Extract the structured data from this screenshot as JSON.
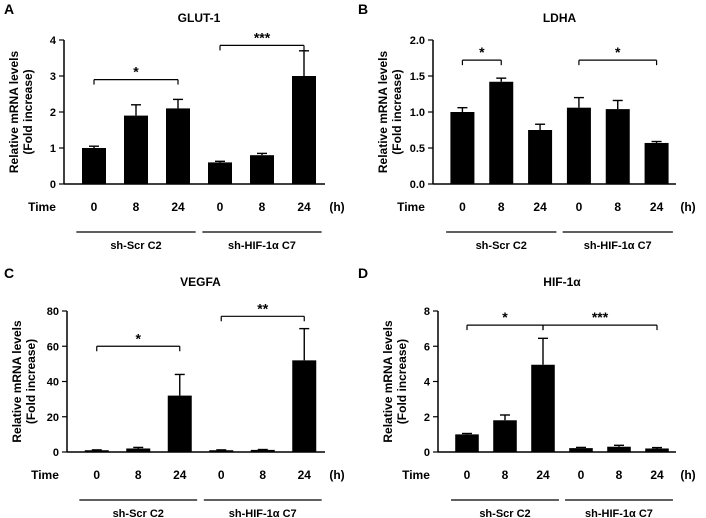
{
  "chart_data": [
    {
      "type": "bar",
      "panel_label": "A",
      "title": "GLUT-1",
      "ylabel_line1": "Relative mRNA levels",
      "ylabel_line2": "(Fold increase)",
      "x_row_label": "Time",
      "x_unit_label": "(h)",
      "categories": [
        "0",
        "8",
        "24",
        "0",
        "8",
        "24"
      ],
      "values": [
        1.0,
        1.9,
        2.1,
        0.6,
        0.8,
        3.0
      ],
      "errors": [
        0.05,
        0.3,
        0.25,
        0.03,
        0.05,
        0.7
      ],
      "yticks": [
        "0",
        "1",
        "2",
        "3",
        "4"
      ],
      "ylim": [
        0,
        4
      ],
      "groups": [
        {
          "label": "sh-Scr C2",
          "start": 0,
          "end": 2
        },
        {
          "label": "sh-HIF-1α C7",
          "start": 3,
          "end": 5
        }
      ],
      "significance": [
        {
          "label": "*",
          "from": 0,
          "to": 2,
          "y": 2.9
        },
        {
          "label": "***",
          "from": 3,
          "to": 5,
          "y": 3.85
        }
      ]
    },
    {
      "type": "bar",
      "panel_label": "B",
      "title": "LDHA",
      "ylabel_line1": "Relative mRNA levels",
      "ylabel_line2": "(Fold increase)",
      "x_row_label": "Time",
      "x_unit_label": "(h)",
      "categories": [
        "0",
        "8",
        "24",
        "0",
        "8",
        "24"
      ],
      "values": [
        1.0,
        1.42,
        0.75,
        1.06,
        1.04,
        0.57
      ],
      "errors": [
        0.06,
        0.05,
        0.08,
        0.14,
        0.12,
        0.02
      ],
      "yticks": [
        "0.0",
        "0.5",
        "1.0",
        "1.5",
        "2.0"
      ],
      "ylim": [
        0,
        2
      ],
      "groups": [
        {
          "label": "sh-Scr C2",
          "start": 0,
          "end": 2
        },
        {
          "label": "sh-HIF-1α C7",
          "start": 3,
          "end": 5
        }
      ],
      "significance": [
        {
          "label": "*",
          "from": 0,
          "to": 1,
          "y": 1.72
        },
        {
          "label": "*",
          "from": 3,
          "to": 5,
          "y": 1.72
        }
      ]
    },
    {
      "type": "bar",
      "panel_label": "C",
      "title": "VEGFA",
      "ylabel_line1": "Relative mRNA levels",
      "ylabel_line2": "(Fold increase)",
      "x_row_label": "Time",
      "x_unit_label": "(h)",
      "categories": [
        "0",
        "8",
        "24",
        "0",
        "8",
        "24"
      ],
      "values": [
        1.0,
        2.0,
        32.0,
        1.0,
        1.2,
        52.0
      ],
      "errors": [
        0.2,
        0.6,
        12.0,
        0.2,
        0.2,
        18.0
      ],
      "yticks": [
        "0",
        "20",
        "40",
        "60",
        "80"
      ],
      "ylim": [
        0,
        80
      ],
      "groups": [
        {
          "label": "sh-Scr C2",
          "start": 0,
          "end": 2
        },
        {
          "label": "sh-HIF-1α C7",
          "start": 3,
          "end": 5
        }
      ],
      "significance": [
        {
          "label": "*",
          "from": 0,
          "to": 2,
          "y": 60
        },
        {
          "label": "**",
          "from": 3,
          "to": 5,
          "y": 77
        }
      ]
    },
    {
      "type": "bar",
      "panel_label": "D",
      "title": "HIF-1α",
      "ylabel_line1": "Relative mRNA levels",
      "ylabel_line2": "(Fold increase)",
      "x_row_label": "Time",
      "x_unit_label": "(h)",
      "categories": [
        "0",
        "8",
        "24",
        "0",
        "8",
        "24"
      ],
      "values": [
        1.0,
        1.8,
        4.95,
        0.22,
        0.3,
        0.2
      ],
      "errors": [
        0.05,
        0.3,
        1.5,
        0.04,
        0.08,
        0.05
      ],
      "yticks": [
        "0",
        "2",
        "4",
        "6",
        "8"
      ],
      "ylim": [
        0,
        8
      ],
      "groups": [
        {
          "label": "sh-Scr C2",
          "start": 0,
          "end": 2
        },
        {
          "label": "sh-HIF-1α C7",
          "start": 3,
          "end": 5
        }
      ],
      "significance": [
        {
          "label": "*",
          "from": 0,
          "to": 2,
          "y": 7.2
        },
        {
          "label": "***",
          "from": 2,
          "to": 5,
          "y": 7.2
        }
      ]
    }
  ]
}
